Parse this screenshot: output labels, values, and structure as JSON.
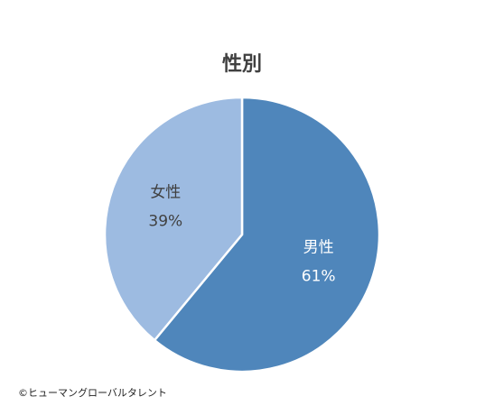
{
  "chart_data": {
    "type": "pie",
    "title": "性別",
    "categories": [
      "男性",
      "女性"
    ],
    "values": [
      61,
      39
    ],
    "value_labels": [
      "61%",
      "39%"
    ],
    "colors": [
      "#4f86bb",
      "#9dbbe1"
    ],
    "source": "©ヒューマングローバルタレント"
  }
}
